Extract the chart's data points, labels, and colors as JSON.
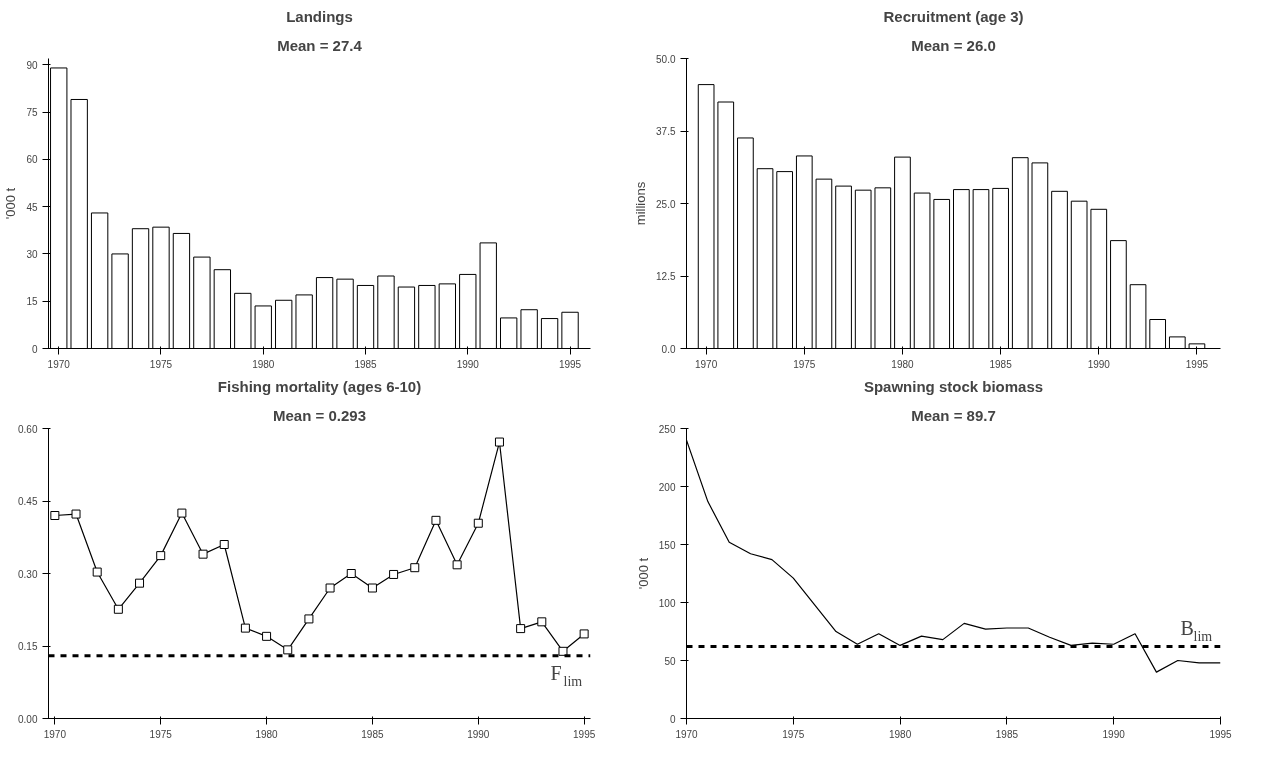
{
  "chart_data": [
    {
      "type": "bar",
      "title": "Landings",
      "subtitle": "Mean = 27.4",
      "ylabel": "'000 t",
      "x": [
        1970,
        1971,
        1972,
        1973,
        1974,
        1975,
        1976,
        1977,
        1978,
        1979,
        1980,
        1981,
        1982,
        1983,
        1984,
        1985,
        1986,
        1987,
        1988,
        1989,
        1990,
        1991,
        1992,
        1993,
        1994,
        1995
      ],
      "series": [
        {
          "color": "#ffffff",
          "values": [
            89,
            79,
            43,
            30,
            38,
            38.5,
            36.5,
            29,
            25,
            17.5,
            13.5,
            15.3,
            17,
            22.5,
            22,
            20,
            23,
            19.5,
            20,
            20.5,
            23.5,
            33.5,
            9.7,
            12.3,
            9.5,
            11.5
          ]
        }
      ],
      "xlim": [
        1969.5,
        1996
      ],
      "xticks": [
        1970,
        1975,
        1980,
        1985,
        1990,
        1995
      ],
      "ylim": [
        0,
        92
      ],
      "yticks": [
        0,
        15,
        30,
        45,
        60,
        75,
        90
      ],
      "grid": false
    },
    {
      "type": "bar",
      "title": "Recruitment (age 3)",
      "subtitle": "Mean = 26.0",
      "ylabel": "millions",
      "x": [
        1970,
        1971,
        1972,
        1973,
        1974,
        1975,
        1976,
        1977,
        1978,
        1979,
        1980,
        1981,
        1982,
        1983,
        1984,
        1985,
        1986,
        1987,
        1988,
        1989,
        1990,
        1991,
        1992,
        1993,
        1994,
        1995
      ],
      "series": [
        {
          "color": "#ffffff",
          "values": [
            45.5,
            42.5,
            36.3,
            31,
            30.5,
            33.2,
            29.2,
            28,
            27.3,
            27.7,
            33,
            26.8,
            25.7,
            27.4,
            27.4,
            27.6,
            32.9,
            32,
            27.1,
            25.4,
            24,
            18.6,
            11,
            5,
            2,
            0.8
          ]
        }
      ],
      "xlim": [
        1969,
        1996.2
      ],
      "xticks": [
        1970,
        1975,
        1980,
        1985,
        1990,
        1995
      ],
      "ylim": [
        0,
        50
      ],
      "yticks": [
        {
          "value": 0,
          "label": "0.0"
        },
        12.5,
        {
          "value": 25,
          "label": "25.0"
        },
        37.5,
        {
          "value": 50,
          "label": "50.0"
        }
      ],
      "grid": false
    },
    {
      "type": "line",
      "title": "Fishing mortality (ages 6-10)",
      "subtitle": "Mean = 0.293",
      "marker": "square",
      "x": [
        1970,
        1971,
        1972,
        1973,
        1974,
        1975,
        1976,
        1977,
        1978,
        1979,
        1980,
        1981,
        1982,
        1983,
        1984,
        1985,
        1986,
        1987,
        1988,
        1989,
        1990,
        1991,
        1992,
        1993,
        1994,
        1995
      ],
      "series": [
        {
          "color": "#000000",
          "values": [
            0.42,
            0.423,
            0.303,
            0.226,
            0.28,
            0.337,
            0.425,
            0.34,
            0.36,
            0.187,
            0.17,
            0.142,
            0.206,
            0.27,
            0.3,
            0.27,
            0.298,
            0.312,
            0.41,
            0.318,
            0.404,
            0.572,
            0.186,
            0.2,
            0.139,
            0.175
          ]
        }
      ],
      "xlim": [
        1969.7,
        1995.3
      ],
      "xticks": [
        1970,
        1975,
        1980,
        1985,
        1990,
        1995
      ],
      "ylim": [
        0,
        0.6
      ],
      "yticks": [
        {
          "value": 0,
          "label": "0.00"
        },
        0.15,
        {
          "value": 0.3,
          "label": "0.30"
        },
        0.45,
        {
          "value": 0.6,
          "label": "0.60"
        }
      ],
      "grid": false,
      "ref_lines": [
        {
          "axis": "y",
          "value": 0.13,
          "label": "F$_{lim}$",
          "color": "#000000",
          "line_style": "dashed"
        }
      ]
    },
    {
      "type": "line",
      "title": "Spawning stock biomass",
      "subtitle": "Mean = 89.7",
      "ylabel": "'000 t",
      "marker": "none",
      "x": [
        1970,
        1971,
        1972,
        1973,
        1974,
        1975,
        1976,
        1977,
        1978,
        1979,
        1980,
        1981,
        1982,
        1983,
        1984,
        1985,
        1986,
        1987,
        1988,
        1989,
        1990,
        1991,
        1992,
        1993,
        1994,
        1995
      ],
      "series": [
        {
          "color": "#000000",
          "values": [
            240,
            187,
            152,
            142,
            137,
            121,
            98,
            75,
            64,
            73,
            63,
            71,
            68,
            82,
            77,
            78,
            78,
            70,
            63,
            65,
            64,
            73,
            40,
            50,
            48,
            48
          ]
        }
      ],
      "xlim": [
        1970,
        1995
      ],
      "xticks": [
        1970,
        1975,
        1980,
        1985,
        1990,
        1995
      ],
      "ylim": [
        0,
        250
      ],
      "yticks": [
        0,
        50,
        100,
        150,
        200,
        250
      ],
      "grid": false,
      "ref_lines": [
        {
          "axis": "y",
          "value": 62,
          "label": "B$_{lim}$",
          "color": "#000000",
          "line_style": "dashed"
        }
      ]
    }
  ]
}
